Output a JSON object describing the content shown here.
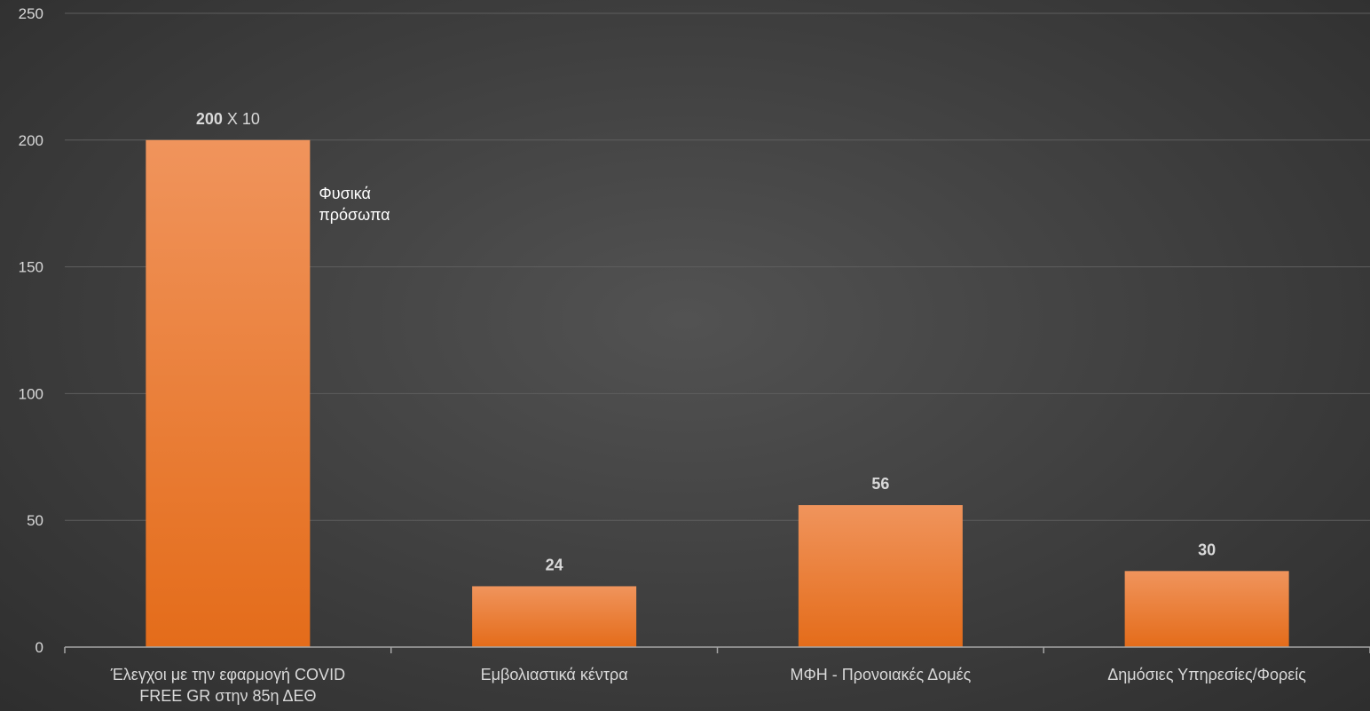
{
  "chart_data": {
    "type": "bar",
    "categories": [
      [
        "Έλεγχοι με την εφαρμογή COVID",
        "FREE GR στην 85η ΔΕΘ"
      ],
      [
        "Εμβολιαστικά κέντρα"
      ],
      [
        "ΜΦΗ - Προνοιακές Δομές"
      ],
      [
        "Δημόσιες Υπηρεσίες/Φορείς"
      ]
    ],
    "values": [
      200,
      24,
      56,
      30
    ],
    "data_labels": [
      "200",
      "24",
      "56",
      "30"
    ],
    "data_label_suffixes": [
      " Χ 10",
      "",
      "",
      ""
    ],
    "annotation": {
      "bar_index": 0,
      "lines": [
        "Φυσικά",
        "πρόσωπα"
      ]
    },
    "yticks": [
      0,
      50,
      100,
      150,
      200,
      250
    ],
    "ylim": [
      0,
      250
    ],
    "grid": true,
    "legend": "none",
    "title": "",
    "xlabel": "",
    "ylabel": "",
    "colors": {
      "bar_top": "#f0945c",
      "bar_bottom": "#e46c1a",
      "gridline": "#5e5e5e",
      "axis": "#a6a6a6",
      "text": "#d9d9d9"
    }
  }
}
